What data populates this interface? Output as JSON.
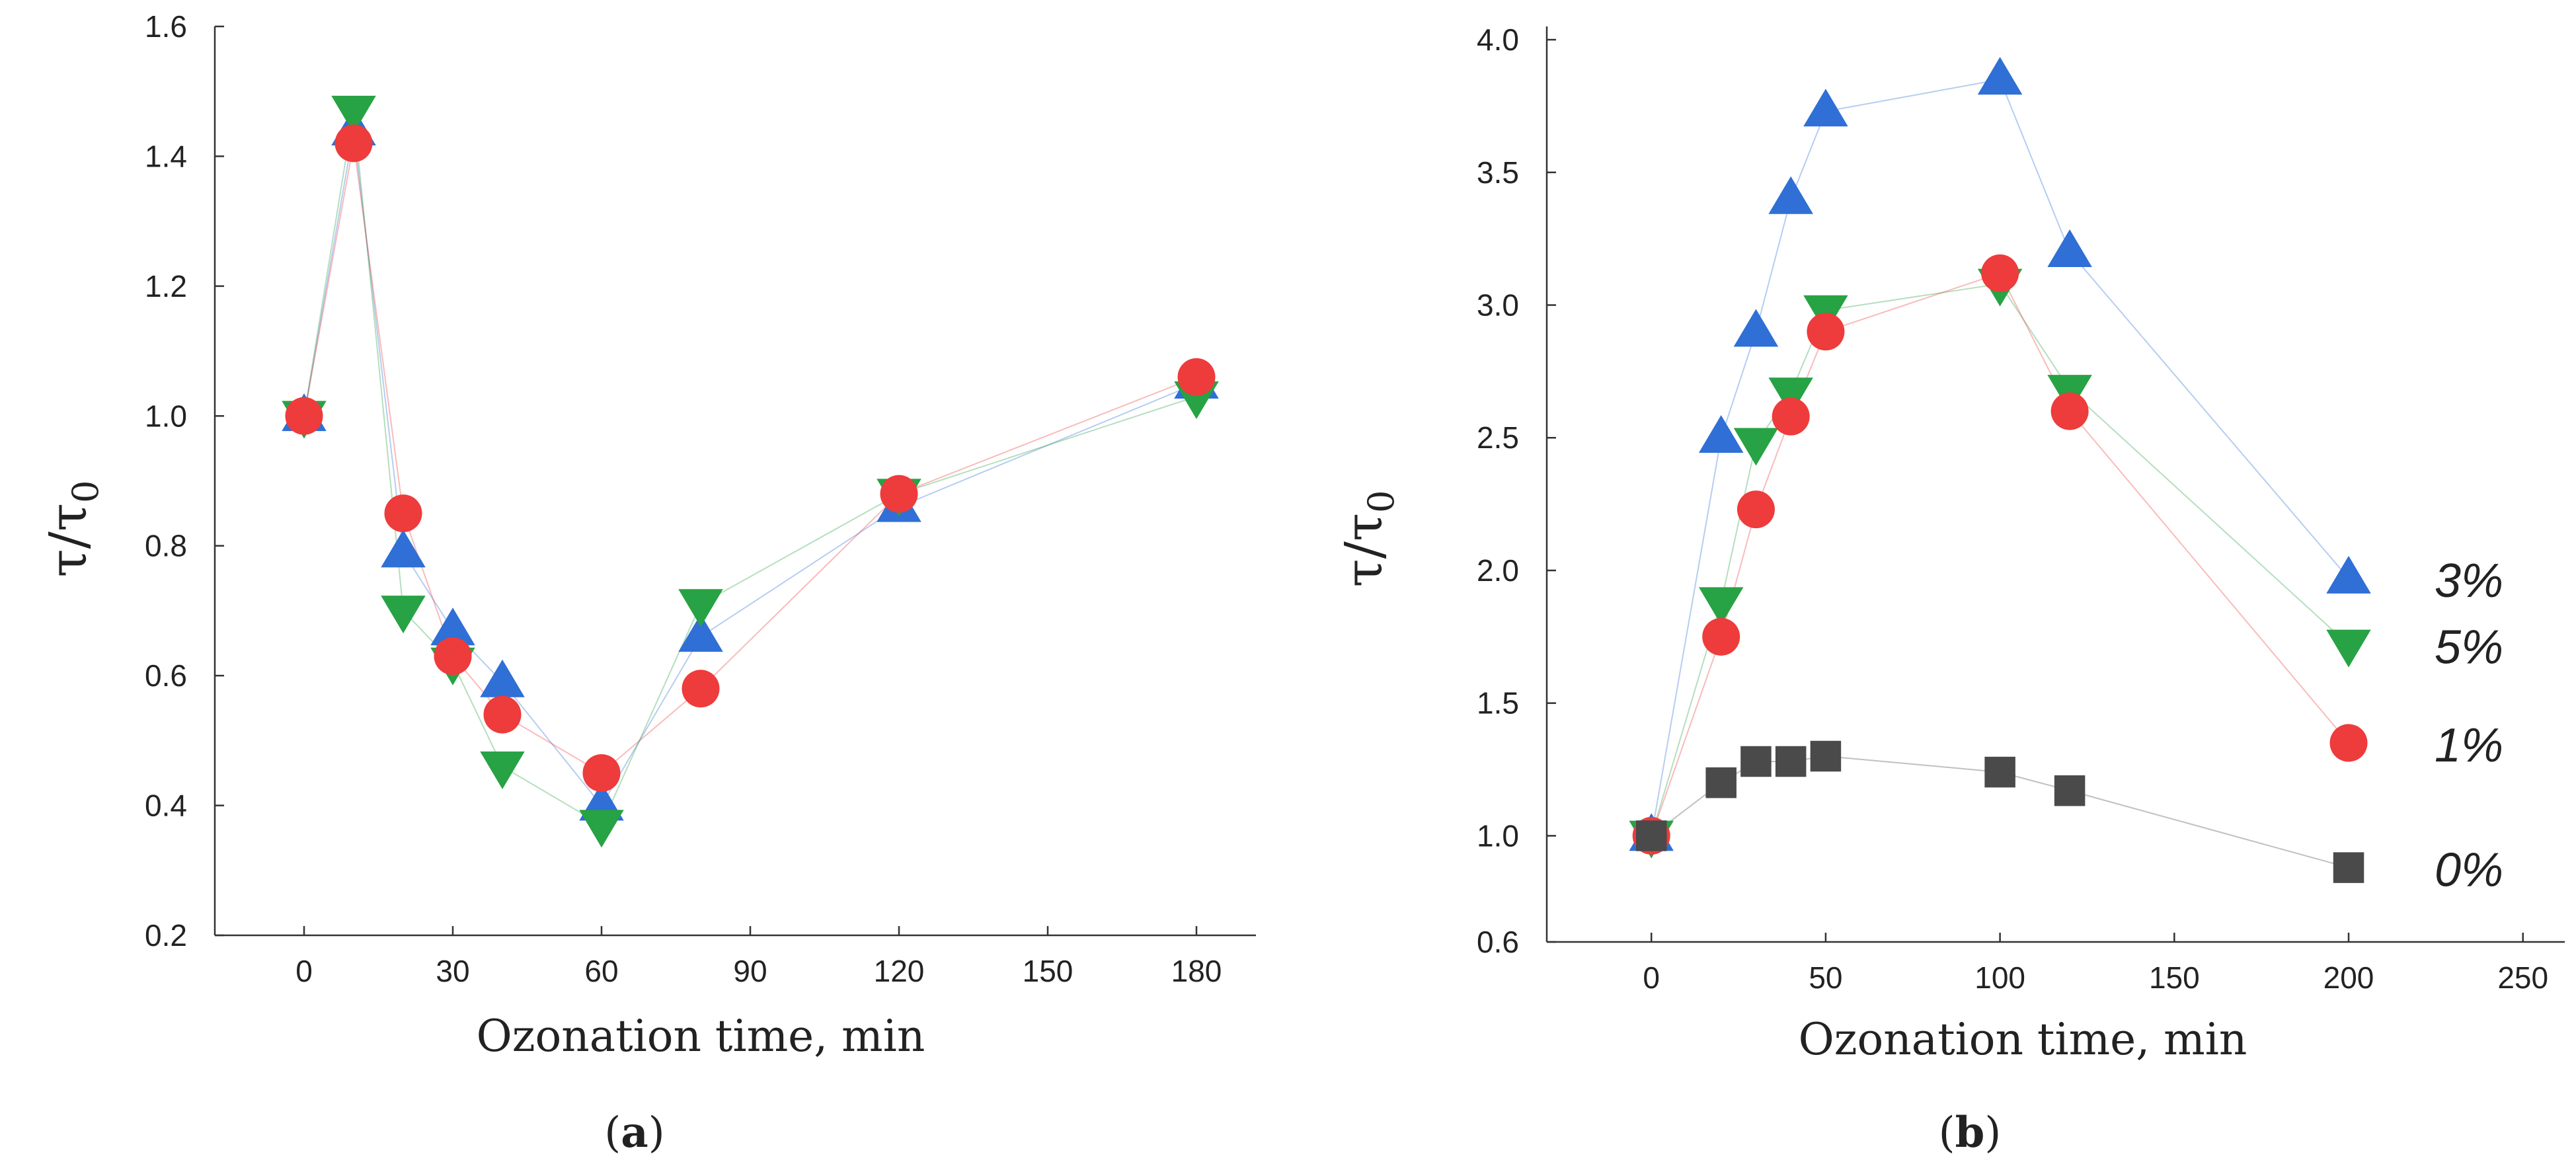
{
  "chart_data": [
    {
      "type": "scatter",
      "panel_label": "a",
      "xlabel": "Ozonation time, min",
      "ylabel_main": "τ/τ",
      "ylabel_sub": "0",
      "xlim": [
        -18,
        192
      ],
      "ylim": [
        0.2,
        1.6
      ],
      "xticks": [
        0,
        30,
        60,
        90,
        120,
        150,
        180
      ],
      "yticks": [
        0.2,
        0.4,
        0.6,
        0.8,
        1.0,
        1.2,
        1.4,
        1.6
      ],
      "ytick_labels": [
        "0.2",
        "0.4",
        "0.6",
        "0.8",
        "1.0",
        "1.2",
        "1.4",
        "1.6"
      ],
      "series": [
        {
          "name": "3%",
          "marker": "triangle-up",
          "color": "#2f6fd6",
          "x": [
            0,
            10,
            20,
            30,
            40,
            60,
            80,
            120,
            180
          ],
          "y": [
            1.0,
            1.44,
            0.79,
            0.67,
            0.59,
            0.4,
            0.66,
            0.86,
            1.05
          ]
        },
        {
          "name": "5%",
          "marker": "triangle-down",
          "color": "#27a244",
          "x": [
            0,
            10,
            20,
            30,
            40,
            60,
            80,
            120,
            180
          ],
          "y": [
            1.0,
            1.47,
            0.7,
            0.62,
            0.46,
            0.37,
            0.71,
            0.88,
            1.03
          ]
        },
        {
          "name": "1%",
          "marker": "circle",
          "color": "#ee3b3b",
          "x": [
            0,
            10,
            20,
            30,
            40,
            60,
            80,
            120,
            180
          ],
          "y": [
            1.0,
            1.42,
            0.85,
            0.63,
            0.54,
            0.45,
            0.58,
            0.88,
            1.06
          ]
        }
      ]
    },
    {
      "type": "scatter",
      "panel_label": "b",
      "xlabel": "Ozonation time, min",
      "ylabel_main": "τ/τ",
      "ylabel_sub": "0",
      "xlim": [
        -30,
        262
      ],
      "ylim": [
        0.6,
        4.05
      ],
      "xticks": [
        0,
        50,
        100,
        150,
        200,
        250
      ],
      "yticks": [
        0.6,
        1.0,
        1.5,
        2.0,
        2.5,
        3.0,
        3.5,
        4.0
      ],
      "ytick_labels": [
        "0.6",
        "1.0",
        "1.5",
        "2.0",
        "2.5",
        "3.0",
        "3.5",
        "4.0"
      ],
      "legend": [
        {
          "name": "3%",
          "marker": "triangle-up",
          "color": "#2f6fd6"
        },
        {
          "name": "5%",
          "marker": "triangle-down",
          "color": "#27a244"
        },
        {
          "name": "1%",
          "marker": "circle",
          "color": "#ee3b3b"
        },
        {
          "name": "0%",
          "marker": "square",
          "color": "#4a4a4a"
        }
      ],
      "series": [
        {
          "name": "3%",
          "marker": "triangle-up",
          "color": "#2f6fd6",
          "x": [
            0,
            20,
            30,
            40,
            50,
            100,
            120,
            200
          ],
          "y": [
            1.0,
            2.5,
            2.9,
            3.4,
            3.73,
            3.85,
            3.2,
            1.97
          ]
        },
        {
          "name": "5%",
          "marker": "triangle-down",
          "color": "#27a244",
          "x": [
            0,
            20,
            30,
            40,
            50,
            100,
            120,
            200
          ],
          "y": [
            1.0,
            1.88,
            2.48,
            2.67,
            2.98,
            3.08,
            2.68,
            1.72
          ]
        },
        {
          "name": "1%",
          "marker": "circle",
          "color": "#ee3b3b",
          "x": [
            0,
            20,
            30,
            40,
            50,
            100,
            120,
            200
          ],
          "y": [
            1.0,
            1.75,
            2.23,
            2.58,
            2.9,
            3.12,
            2.6,
            1.35
          ]
        },
        {
          "name": "0%",
          "marker": "square",
          "color": "#4a4a4a",
          "x": [
            0,
            20,
            30,
            40,
            50,
            100,
            120,
            200
          ],
          "y": [
            1.0,
            1.2,
            1.28,
            1.28,
            1.3,
            1.24,
            1.17,
            0.88
          ]
        }
      ]
    }
  ]
}
